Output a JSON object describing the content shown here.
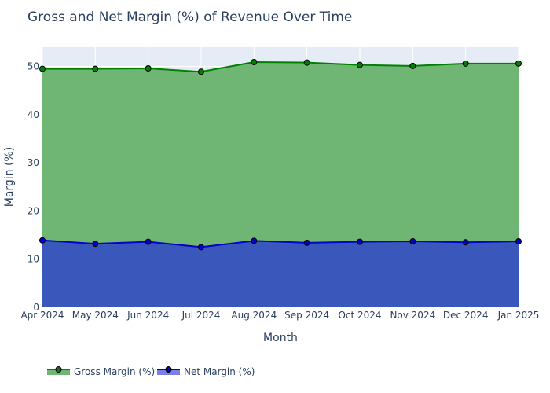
{
  "chart_data": {
    "type": "area",
    "title": "Gross and Net Margin (%) of Revenue Over Time",
    "xlabel": "Month",
    "ylabel": "Margin (%)",
    "categories": [
      "Apr 2024",
      "May 2024",
      "Jun 2024",
      "Jul 2024",
      "Aug 2024",
      "Sep 2024",
      "Oct 2024",
      "Nov 2024",
      "Dec 2024",
      "Jan 2025"
    ],
    "ylim": [
      0,
      54
    ],
    "yticks": [
      0,
      10,
      20,
      30,
      40,
      50
    ],
    "grid": true,
    "legend_position": "bottom-left",
    "series": [
      {
        "name": "Gross Margin (%)",
        "values": [
          49.5,
          49.5,
          49.6,
          48.9,
          50.9,
          50.8,
          50.3,
          50.1,
          50.6,
          50.6
        ],
        "line_color": "#008000",
        "fill_color": "#6fb574"
      },
      {
        "name": "Net Margin (%)",
        "values": [
          13.9,
          13.2,
          13.6,
          12.5,
          13.8,
          13.4,
          13.6,
          13.7,
          13.5,
          13.7
        ],
        "line_color": "#0000cd",
        "fill_color": "#3a57bb"
      }
    ]
  }
}
